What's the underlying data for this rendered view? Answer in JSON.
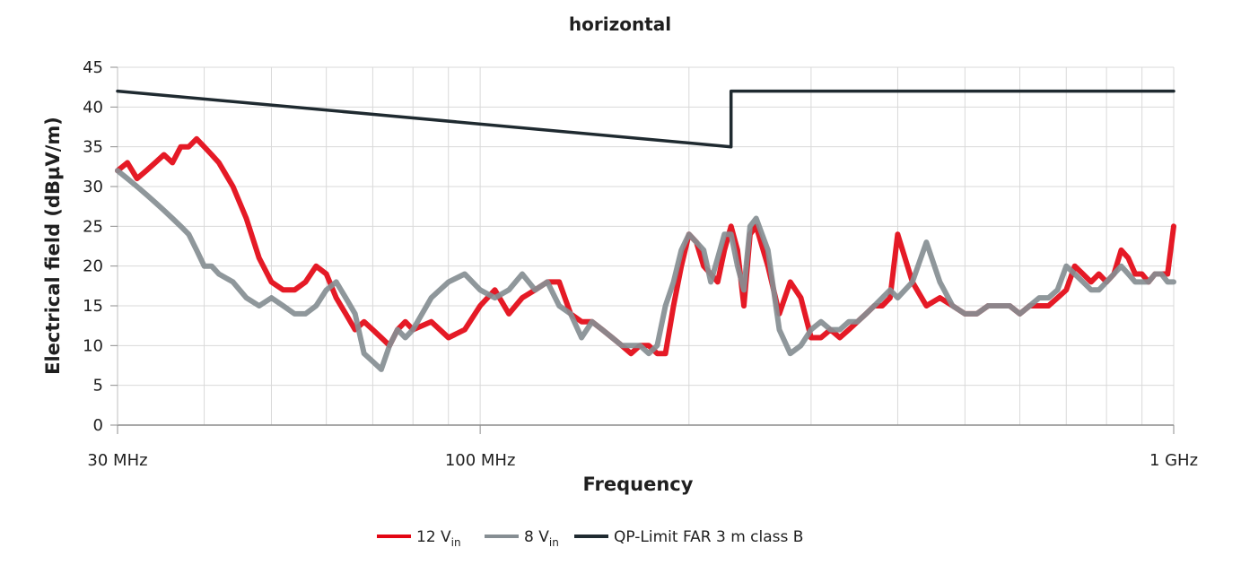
{
  "chart_data": {
    "type": "line",
    "title": "horizontal",
    "xlabel": "Frequency",
    "ylabel": "Electrical field (dBµV/m)",
    "x_scale": "log",
    "x_unit": "MHz",
    "xlim": [
      30,
      1000
    ],
    "ylim": [
      0,
      45
    ],
    "y_ticks": [
      0,
      5,
      10,
      15,
      20,
      25,
      30,
      35,
      40,
      45
    ],
    "x_ticks": [
      {
        "value": 30,
        "label": "30 MHz"
      },
      {
        "value": 100,
        "label": "100 MHz"
      },
      {
        "value": 1000,
        "label": "1 GHz"
      }
    ],
    "grid": true,
    "legend_position": "bottom",
    "series": [
      {
        "name": "12 V",
        "name_sub": "in",
        "color": "#e30613",
        "x": [
          30,
          31,
          32,
          33,
          34,
          35,
          36,
          37,
          38,
          39,
          40,
          41,
          42,
          44,
          46,
          48,
          50,
          52,
          54,
          56,
          58,
          60,
          62,
          64,
          66,
          68,
          70,
          72,
          74,
          76,
          78,
          80,
          85,
          90,
          95,
          100,
          105,
          110,
          115,
          120,
          125,
          130,
          135,
          140,
          145,
          150,
          155,
          160,
          165,
          170,
          175,
          180,
          185,
          190,
          195,
          200,
          205,
          210,
          215,
          220,
          225,
          230,
          235,
          240,
          245,
          250,
          260,
          270,
          280,
          290,
          300,
          310,
          320,
          330,
          340,
          350,
          360,
          370,
          380,
          390,
          400,
          420,
          440,
          460,
          480,
          500,
          520,
          540,
          560,
          580,
          600,
          620,
          640,
          660,
          680,
          700,
          720,
          740,
          760,
          780,
          800,
          820,
          840,
          860,
          880,
          900,
          920,
          940,
          960,
          980,
          1000
        ],
        "values": [
          32,
          33,
          31,
          32,
          33,
          34,
          33,
          35,
          35,
          36,
          35,
          34,
          33,
          30,
          26,
          21,
          18,
          17,
          17,
          18,
          20,
          19,
          16,
          14,
          12,
          13,
          12,
          11,
          10,
          12,
          13,
          12,
          13,
          11,
          12,
          15,
          17,
          14,
          16,
          17,
          18,
          18,
          14,
          13,
          13,
          12,
          11,
          10,
          9,
          10,
          10,
          9,
          9,
          15,
          20,
          24,
          23,
          20,
          19,
          18,
          22,
          25,
          22,
          15,
          24,
          25,
          20,
          14,
          18,
          16,
          11,
          11,
          12,
          11,
          12,
          13,
          14,
          15,
          15,
          16,
          24,
          18,
          15,
          16,
          15,
          14,
          14,
          15,
          15,
          15,
          14,
          15,
          15,
          15,
          16,
          17,
          20,
          19,
          18,
          19,
          18,
          19,
          22,
          21,
          19,
          19,
          18,
          19,
          19,
          19,
          25
        ]
      },
      {
        "name": "8 V",
        "name_sub": "in",
        "color": "#868e93",
        "x": [
          30,
          31,
          32,
          33,
          34,
          35,
          36,
          37,
          38,
          39,
          40,
          41,
          42,
          44,
          46,
          48,
          50,
          52,
          54,
          56,
          58,
          60,
          62,
          64,
          66,
          68,
          70,
          72,
          74,
          76,
          78,
          80,
          85,
          90,
          95,
          100,
          105,
          110,
          115,
          120,
          125,
          130,
          135,
          140,
          145,
          150,
          155,
          160,
          165,
          170,
          175,
          180,
          185,
          190,
          195,
          200,
          205,
          210,
          215,
          220,
          225,
          230,
          235,
          240,
          245,
          250,
          260,
          270,
          280,
          290,
          300,
          310,
          320,
          330,
          340,
          350,
          360,
          370,
          380,
          390,
          400,
          420,
          440,
          460,
          480,
          500,
          520,
          540,
          560,
          580,
          600,
          620,
          640,
          660,
          680,
          700,
          720,
          740,
          760,
          780,
          800,
          820,
          840,
          860,
          880,
          900,
          920,
          940,
          960,
          980,
          1000
        ],
        "values": [
          32,
          31,
          30,
          29,
          28,
          27,
          26,
          25,
          24,
          22,
          20,
          20,
          19,
          18,
          16,
          15,
          16,
          15,
          14,
          14,
          15,
          17,
          18,
          16,
          14,
          9,
          8,
          7,
          10,
          12,
          11,
          12,
          16,
          18,
          19,
          17,
          16,
          17,
          19,
          17,
          18,
          15,
          14,
          11,
          13,
          12,
          11,
          10,
          10,
          10,
          9,
          10,
          15,
          18,
          22,
          24,
          23,
          22,
          18,
          21,
          24,
          24,
          20,
          17,
          25,
          26,
          22,
          12,
          9,
          10,
          12,
          13,
          12,
          12,
          13,
          13,
          14,
          15,
          16,
          17,
          16,
          18,
          23,
          18,
          15,
          14,
          14,
          15,
          15,
          15,
          14,
          15,
          16,
          16,
          17,
          20,
          19,
          18,
          17,
          17,
          18,
          19,
          20,
          19,
          18,
          18,
          18,
          19,
          19,
          18,
          18
        ]
      },
      {
        "name": "QP-Limit FAR 3 m class B",
        "color": "#1f2a30",
        "x": [
          30,
          230,
          230,
          1000
        ],
        "values": [
          42,
          35,
          42,
          42
        ]
      }
    ]
  }
}
